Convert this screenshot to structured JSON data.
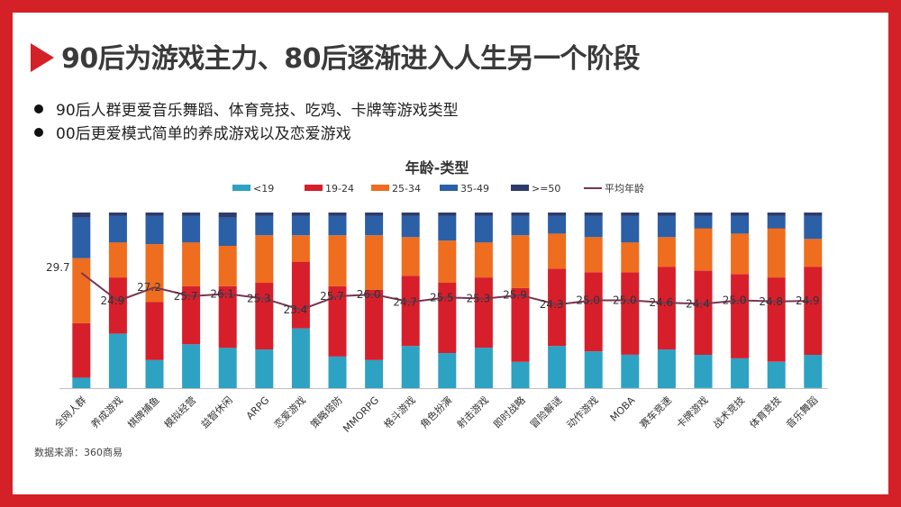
{
  "title": "90后为游戏主力、80后逐渐进入人生另一个阶段",
  "bullets": [
    "90后人群更爱音乐舞蹈、体育竞技、吃鸡、卡牌等游戏类型",
    "00后更爱模式简单的养成游戏以及恋爱游戏"
  ],
  "source": "数据来源：360商易",
  "colors": {
    "accent": "#d42027",
    "lt19": "#2ea2c3",
    "19_24": "#d71f2b",
    "25_34": "#ee6d1f",
    "35_49": "#2b5fa6",
    "gte50": "#2e3c6d",
    "avg_line": "#7a3550"
  },
  "chart_data": {
    "type": "bar",
    "stacked": true,
    "title": "年龄-类型",
    "legend_position": "top",
    "categories": [
      "全网人群",
      "养成游戏",
      "棋牌捕鱼",
      "模拟经营",
      "益智休闲",
      "ARPG",
      "恋爱游戏",
      "策略塔防",
      "MMORPG",
      "格斗游戏",
      "角色扮演",
      "射击游戏",
      "即时战略",
      "冒险解谜",
      "动作游戏",
      "MOBA",
      "赛车竞速",
      "卡牌游戏",
      "战术竞技",
      "体育竞技",
      "音乐舞蹈"
    ],
    "series": [
      {
        "name": "<19",
        "color": "#2ea2c3",
        "values": [
          6,
          31,
          16,
          25,
          23,
          22,
          34,
          18,
          16,
          24,
          20,
          23,
          15,
          24,
          21,
          19,
          22,
          19,
          17,
          15,
          19
        ]
      },
      {
        "name": "19-24",
        "color": "#d71f2b",
        "values": [
          31,
          32,
          33,
          33,
          35,
          38,
          38,
          40,
          40,
          40,
          40,
          40,
          42,
          44,
          45,
          47,
          47,
          48,
          48,
          48,
          50
        ]
      },
      {
        "name": "25-34",
        "color": "#ee6d1f",
        "values": [
          37,
          20,
          33,
          25,
          23,
          27,
          15,
          29,
          31,
          22,
          24,
          20,
          30,
          20,
          20,
          17,
          17,
          24,
          23,
          28,
          16
        ]
      },
      {
        "name": "35-49",
        "color": "#2b5fa6",
        "values": [
          23,
          15,
          16,
          15,
          16,
          11,
          11,
          11,
          11,
          12,
          14,
          15,
          11,
          10,
          12,
          15,
          12,
          7,
          10,
          7,
          13
        ]
      },
      {
        "name": ">=50",
        "color": "#2e3c6d",
        "values": [
          3,
          2,
          2,
          2,
          3,
          2,
          2,
          2,
          2,
          2,
          2,
          2,
          2,
          2,
          2,
          2,
          2,
          2,
          2,
          2,
          2
        ]
      }
    ],
    "line_series": {
      "name": "平均年龄",
      "color": "#7a3550",
      "values": [
        29.7,
        24.9,
        27.2,
        25.7,
        26.1,
        25.3,
        23.4,
        25.7,
        26.0,
        24.7,
        25.5,
        25.3,
        25.9,
        24.3,
        25.0,
        25.0,
        24.6,
        24.4,
        25.0,
        24.8,
        24.9
      ],
      "labels": [
        "29.7",
        "24.9",
        "27.2",
        "25.7",
        "26.1",
        "25.3",
        "23.4",
        "25.7",
        "26.0",
        "24.7",
        "25.5",
        "25.3",
        "25.9",
        "24.3",
        "25.0",
        "25.0",
        "24.6",
        "24.4",
        "25.0",
        "24.8",
        "24.9"
      ]
    },
    "ylim": [
      0,
      100
    ],
    "line_ylim": [
      10,
      40
    ],
    "grid": false
  }
}
